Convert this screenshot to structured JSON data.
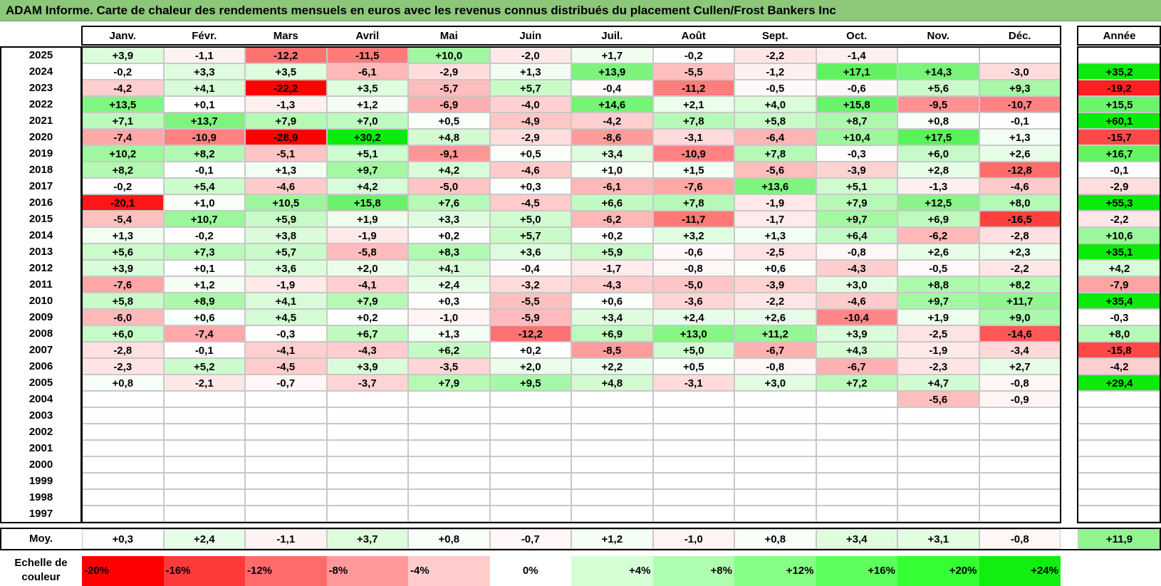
{
  "title": "ADAM Informe. Carte de chaleur des rendements mensuels en euros avec les revenus connus distribués du placement Cullen/Frost Bankers Inc",
  "chart_data": {
    "type": "heatmap",
    "title": "ADAM Informe. Carte de chaleur des rendements mensuels en euros avec les revenus connus distribués du placement Cullen/Frost Bankers Inc",
    "months": [
      "Janv.",
      "Févr.",
      "Mars",
      "Avril",
      "Mai",
      "Juin",
      "Juil.",
      "Août",
      "Sept.",
      "Oct.",
      "Nov.",
      "Déc."
    ],
    "annual_header": "Année",
    "rows": [
      {
        "year": "2025",
        "values": [
          "+3,9",
          "-1,1",
          "-12,2",
          "-11,5",
          "+10,0",
          "-2,0",
          "+1,7",
          "-0,2",
          "-2,2",
          "-1,4",
          "",
          ""
        ],
        "annual": ""
      },
      {
        "year": "2024",
        "values": [
          "-0,2",
          "+3,3",
          "+3,5",
          "-6,1",
          "-2,9",
          "+1,3",
          "+13,9",
          "-5,5",
          "-1,2",
          "+17,1",
          "+14,3",
          "-3,0"
        ],
        "annual": "+35,2"
      },
      {
        "year": "2023",
        "values": [
          "-4,2",
          "+4,1",
          "-22,2",
          "+3,5",
          "-5,7",
          "+5,7",
          "-0,4",
          "-11,2",
          "-0,5",
          "-0,6",
          "+5,6",
          "+9,3"
        ],
        "annual": "-19,2"
      },
      {
        "year": "2022",
        "values": [
          "+13,5",
          "+0,1",
          "-1,3",
          "+1,2",
          "-6,9",
          "-4,0",
          "+14,6",
          "+2,1",
          "+4,0",
          "+15,8",
          "-9,5",
          "-10,7"
        ],
        "annual": "+15,5"
      },
      {
        "year": "2021",
        "values": [
          "+7,1",
          "+13,7",
          "+7,9",
          "+7,0",
          "+0,5",
          "-4,9",
          "-4,2",
          "+7,8",
          "+5,8",
          "+8,7",
          "+0,8",
          "-0,1"
        ],
        "annual": "+60,1"
      },
      {
        "year": "2020",
        "values": [
          "-7,4",
          "-10,9",
          "-28,9",
          "+30,2",
          "+4,8",
          "-2,9",
          "-8,6",
          "-3,1",
          "-6,4",
          "+10,4",
          "+17,5",
          "+1,3"
        ],
        "annual": "-15,7"
      },
      {
        "year": "2019",
        "values": [
          "+10,2",
          "+8,2",
          "-5,1",
          "+5,1",
          "-9,1",
          "+0,5",
          "+3,4",
          "-10,9",
          "+7,8",
          "-0,3",
          "+6,0",
          "+2,6"
        ],
        "annual": "+16,7"
      },
      {
        "year": "2018",
        "values": [
          "+8,2",
          "-0,1",
          "+1,3",
          "+9,7",
          "+4,2",
          "-4,6",
          "+1,0",
          "+1,5",
          "-5,6",
          "-3,9",
          "+2,8",
          "-12,8"
        ],
        "annual": "-0,1"
      },
      {
        "year": "2017",
        "values": [
          "-0,2",
          "+5,4",
          "-4,6",
          "+4,2",
          "-5,0",
          "+0,3",
          "-6,1",
          "-7,6",
          "+13,6",
          "+5,1",
          "-1,3",
          "-4,6"
        ],
        "annual": "-2,9"
      },
      {
        "year": "2016",
        "values": [
          "-20,1",
          "+1,0",
          "+10,5",
          "+15,8",
          "+7,6",
          "-4,5",
          "+6,6",
          "+7,8",
          "-1,9",
          "+7,9",
          "+12,5",
          "+8,0"
        ],
        "annual": "+55,3"
      },
      {
        "year": "2015",
        "values": [
          "-5,4",
          "+10,7",
          "+5,9",
          "+1,9",
          "+3,3",
          "+5,0",
          "-6,2",
          "-11,7",
          "-1,7",
          "+9,7",
          "+6,9",
          "-16,5"
        ],
        "annual": "-2,2"
      },
      {
        "year": "2014",
        "values": [
          "+1,3",
          "-0,2",
          "+3,8",
          "-1,9",
          "+0,2",
          "+5,7",
          "+0,2",
          "+3,2",
          "+1,3",
          "+6,4",
          "-6,2",
          "-2,8"
        ],
        "annual": "+10,6"
      },
      {
        "year": "2013",
        "values": [
          "+5,6",
          "+7,3",
          "+5,7",
          "-5,8",
          "+8,3",
          "+3,6",
          "+5,9",
          "-0,6",
          "-2,5",
          "-0,8",
          "+2,6",
          "+2,3"
        ],
        "annual": "+35,1"
      },
      {
        "year": "2012",
        "values": [
          "+3,9",
          "+0,1",
          "+3,6",
          "+2,0",
          "+4,1",
          "-0,4",
          "-1,7",
          "-0,8",
          "+0,6",
          "-4,3",
          "-0,5",
          "-2,2"
        ],
        "annual": "+4,2"
      },
      {
        "year": "2011",
        "values": [
          "-7,6",
          "+1,2",
          "-1,9",
          "-4,1",
          "+2,4",
          "-3,2",
          "-4,3",
          "-5,0",
          "-3,9",
          "+3,0",
          "+8,8",
          "+8,2"
        ],
        "annual": "-7,9"
      },
      {
        "year": "2010",
        "values": [
          "+5,8",
          "+8,9",
          "+4,1",
          "+7,9",
          "+0,3",
          "-5,5",
          "+0,6",
          "-3,6",
          "-2,2",
          "-4,6",
          "+9,7",
          "+11,7"
        ],
        "annual": "+35,4"
      },
      {
        "year": "2009",
        "values": [
          "-6,0",
          "+0,6",
          "+4,5",
          "+0,2",
          "-1,0",
          "-5,9",
          "+3,4",
          "+2,4",
          "+2,6",
          "-10,4",
          "+1,9",
          "+9,0"
        ],
        "annual": "-0,3"
      },
      {
        "year": "2008",
        "values": [
          "+6,0",
          "-7,4",
          "-0,3",
          "+6,7",
          "+1,3",
          "-12,2",
          "+6,9",
          "+13,0",
          "+11,2",
          "+3,9",
          "-2,5",
          "-14,6"
        ],
        "annual": "+8,0"
      },
      {
        "year": "2007",
        "values": [
          "-2,8",
          "-0,1",
          "-4,1",
          "-4,3",
          "+6,2",
          "+0,2",
          "-8,5",
          "+5,0",
          "-6,7",
          "+4,3",
          "-1,9",
          "-3,4"
        ],
        "annual": "-15,8"
      },
      {
        "year": "2006",
        "values": [
          "-2,3",
          "+5,2",
          "-4,5",
          "+3,9",
          "-3,5",
          "+2,0",
          "+2,2",
          "+0,5",
          "-0,8",
          "-6,7",
          "-2,3",
          "+2,7"
        ],
        "annual": "-4,2"
      },
      {
        "year": "2005",
        "values": [
          "+0,8",
          "-2,1",
          "-0,7",
          "-3,7",
          "+7,9",
          "+9,5",
          "+4,8",
          "-3,1",
          "+3,0",
          "+7,2",
          "+4,7",
          "-0,8"
        ],
        "annual": "+29,4"
      },
      {
        "year": "2004",
        "values": [
          "",
          "",
          "",
          "",
          "",
          "",
          "",
          "",
          "",
          "",
          "-5,6",
          "-0,9"
        ],
        "annual": ""
      },
      {
        "year": "2003",
        "values": [
          "",
          "",
          "",
          "",
          "",
          "",
          "",
          "",
          "",
          "",
          "",
          ""
        ],
        "annual": ""
      },
      {
        "year": "2002",
        "values": [
          "",
          "",
          "",
          "",
          "",
          "",
          "",
          "",
          "",
          "",
          "",
          ""
        ],
        "annual": ""
      },
      {
        "year": "2001",
        "values": [
          "",
          "",
          "",
          "",
          "",
          "",
          "",
          "",
          "",
          "",
          "",
          ""
        ],
        "annual": ""
      },
      {
        "year": "2000",
        "values": [
          "",
          "",
          "",
          "",
          "",
          "",
          "",
          "",
          "",
          "",
          "",
          ""
        ],
        "annual": ""
      },
      {
        "year": "1999",
        "values": [
          "",
          "",
          "",
          "",
          "",
          "",
          "",
          "",
          "",
          "",
          "",
          ""
        ],
        "annual": ""
      },
      {
        "year": "1998",
        "values": [
          "",
          "",
          "",
          "",
          "",
          "",
          "",
          "",
          "",
          "",
          "",
          ""
        ],
        "annual": ""
      },
      {
        "year": "1997",
        "values": [
          "",
          "",
          "",
          "",
          "",
          "",
          "",
          "",
          "",
          "",
          "",
          ""
        ],
        "annual": ""
      }
    ],
    "average": {
      "label": "Moy.",
      "values": [
        "+0,3",
        "+2,4",
        "-1,1",
        "+3,7",
        "+0,8",
        "-0,7",
        "+1,2",
        "-1,0",
        "+0,8",
        "+3,4",
        "+3,1",
        "-0,8"
      ],
      "annual": "+11,9"
    },
    "color_scale": {
      "label": "Echelle de couleur",
      "stops": [
        "-20%",
        "-16%",
        "-12%",
        "-8%",
        "-4%",
        "0%",
        "+4%",
        "+8%",
        "+12%",
        "+16%",
        "+20%",
        "+24%"
      ],
      "colors": [
        "#ff0000",
        "#ff3a3a",
        "#ff6b6b",
        "#ff9999",
        "#ffcccc",
        "#ffffff",
        "#d6ffd6",
        "#b0ffb0",
        "#86ff86",
        "#5cff5c",
        "#33ff33",
        "#10ef10"
      ]
    },
    "negative_color": "#ff0000",
    "positive_color": "#00ee00"
  }
}
